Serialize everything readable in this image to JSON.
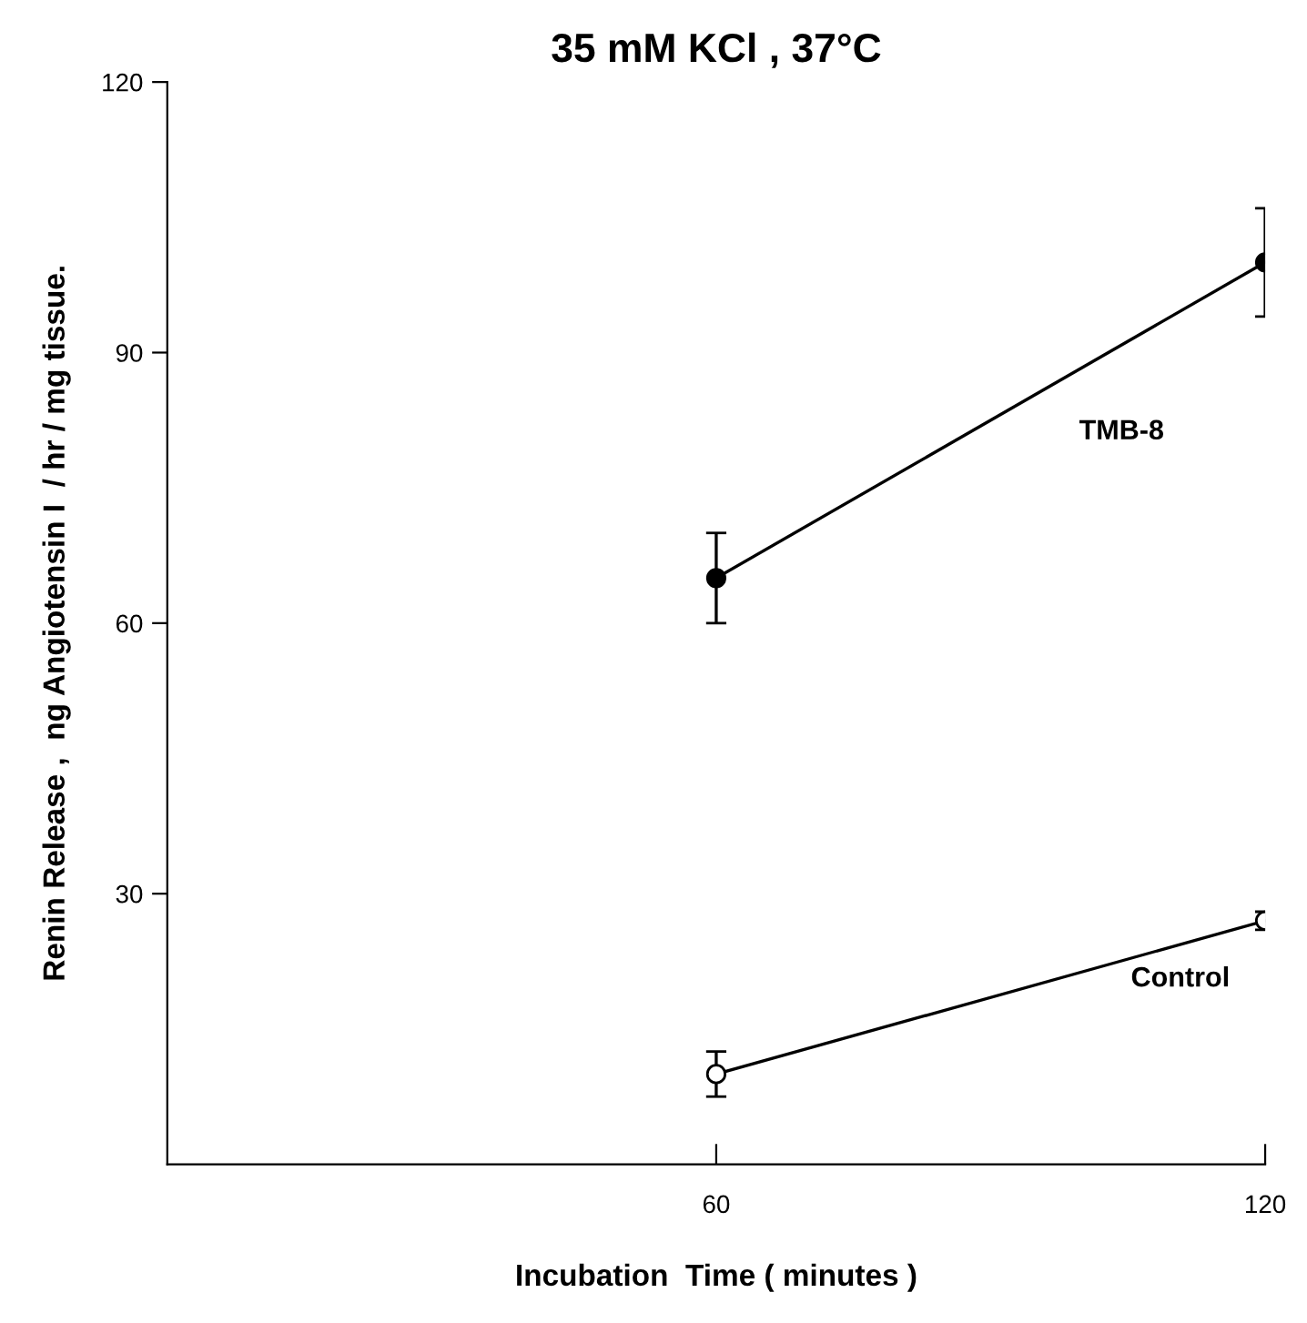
{
  "chart_data": {
    "type": "line",
    "title": "35 mM KCl , 37°C",
    "xlabel": "Incubation  Time ( minutes )",
    "ylabel": "Renin Release ,  ng Angiotensin I  / hr / mg tissue.",
    "x": [
      60,
      120
    ],
    "series": [
      {
        "name": "TMB-8",
        "color": "#000000",
        "values": [
          65,
          100
        ],
        "errors": [
          5,
          6
        ]
      },
      {
        "name": "Control",
        "color": "#000000",
        "values": [
          10,
          27
        ],
        "errors": [
          2.5,
          1
        ]
      }
    ],
    "xlim": [
      0,
      120
    ],
    "ylim": [
      0,
      120
    ],
    "xticks": [
      60,
      120
    ],
    "yticks": [
      30,
      60,
      90,
      120
    ],
    "marker": "circle",
    "line_style": "solid",
    "grid": false,
    "legend": false
  }
}
